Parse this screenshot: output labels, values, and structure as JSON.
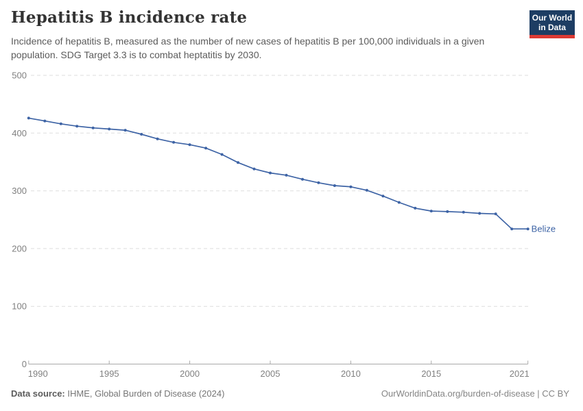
{
  "header": {
    "title": "Hepatitis B incidence rate",
    "subtitle": "Incidence of hepatitis B, measured as the number of new cases of hepatitis B per 100,000 individuals in a given population. SDG Target 3.3 is to combat heptatitis by 2030.",
    "logo": {
      "line1": "Our World",
      "line2": "in Data",
      "bg": "#1d3d63",
      "accent": "#dc3a34"
    }
  },
  "chart_data": {
    "type": "line",
    "title": "Hepatitis B incidence rate",
    "x": [
      1990,
      1991,
      1992,
      1993,
      1994,
      1995,
      1996,
      1997,
      1998,
      1999,
      2000,
      2001,
      2002,
      2003,
      2004,
      2005,
      2006,
      2007,
      2008,
      2009,
      2010,
      2011,
      2012,
      2013,
      2014,
      2015,
      2016,
      2017,
      2018,
      2019,
      2020,
      2021
    ],
    "series": [
      {
        "name": "Belize",
        "color": "#3d63a5",
        "values": [
          426,
          421,
          416,
          412,
          409,
          407,
          405,
          398,
          390,
          384,
          380,
          374,
          363,
          349,
          338,
          331,
          327,
          320,
          314,
          309,
          307,
          301,
          291,
          280,
          270,
          265,
          264,
          263,
          261,
          260,
          234,
          234
        ]
      }
    ],
    "x_ticks": [
      1990,
      1995,
      2000,
      2005,
      2010,
      2015,
      2021
    ],
    "y_ticks": [
      0,
      100,
      200,
      300,
      400,
      500
    ],
    "xlim": [
      1990,
      2021
    ],
    "ylim": [
      0,
      500
    ],
    "xlabel": "",
    "ylabel": "",
    "grid": "horizontal-dashed",
    "legend_position": "end-of-line-label"
  },
  "footer": {
    "source_label": "Data source:",
    "source_value": "IHME, Global Burden of Disease (2024)",
    "credit": "OurWorldinData.org/burden-of-disease | CC BY"
  }
}
